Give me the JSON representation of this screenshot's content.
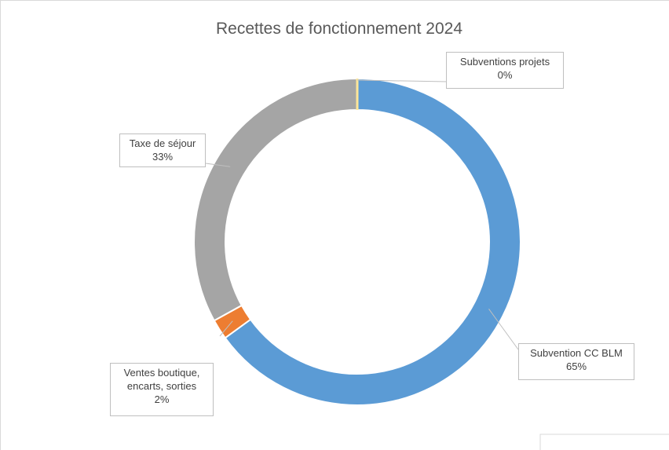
{
  "chart_data": {
    "type": "donut",
    "title": "Recettes de fonctionnement 2024",
    "categories": [
      "Subvention CC BLM",
      "Ventes boutique, encarts, sorties",
      "Taxe de séjour",
      "Subventions projets"
    ],
    "values": [
      65,
      2,
      33,
      0
    ],
    "value_labels": [
      "65%",
      "2%",
      "33%",
      "0%"
    ],
    "colors": [
      "#5b9bd5",
      "#ed7d31",
      "#a5a5a5",
      "#ffe699"
    ]
  }
}
